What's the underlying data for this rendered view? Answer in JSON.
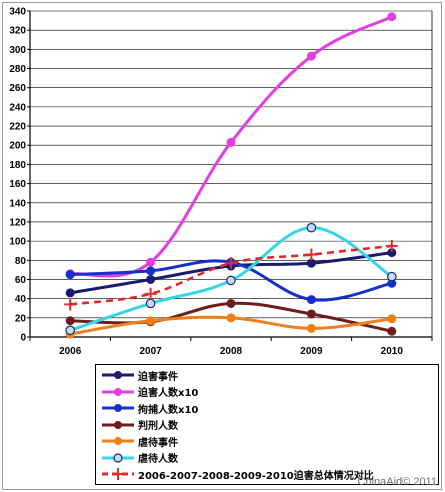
{
  "chart_data": {
    "type": "line",
    "title": "",
    "xlabel": "",
    "ylabel": "",
    "categories": [
      "2006",
      "2007",
      "2008",
      "2009",
      "2010"
    ],
    "ylim": [
      0,
      340
    ],
    "yticks": [
      0,
      20,
      40,
      60,
      80,
      100,
      120,
      140,
      160,
      180,
      200,
      220,
      240,
      260,
      280,
      300,
      320,
      340
    ],
    "grid": "horizontal",
    "legend_placement": "bottom",
    "series": [
      {
        "name": "迫害事件",
        "values": [
          46,
          60,
          74,
          77,
          88
        ],
        "color": "#1a1a6e",
        "style": "solid",
        "marker": "circle"
      },
      {
        "name": "迫害人数x10",
        "values": [
          66,
          78,
          203,
          293,
          334
        ],
        "color": "#e23ee2",
        "style": "solid",
        "marker": "circle"
      },
      {
        "name": "拘捕人数x10",
        "values": [
          65,
          69,
          78,
          39,
          56
        ],
        "color": "#1630cc",
        "style": "solid",
        "marker": "circle"
      },
      {
        "name": "判刑人数",
        "values": [
          17,
          16,
          35,
          24,
          6
        ],
        "color": "#6e1c1c",
        "style": "solid",
        "marker": "circle"
      },
      {
        "name": "虐待事件",
        "values": [
          3,
          17,
          20,
          9,
          19
        ],
        "color": "#f07f1a",
        "style": "solid",
        "marker": "circle"
      },
      {
        "name": "虐待人数",
        "values": [
          7,
          35,
          59,
          114,
          63
        ],
        "color": "#33d6e6",
        "style": "solid",
        "marker": "open-circle"
      },
      {
        "name": "2006-2007-2008-2009-2010迫害总体情况对比",
        "values": [
          34,
          45,
          77,
          86,
          95
        ],
        "color": "#e02a2a",
        "style": "dashed",
        "marker": "plus"
      }
    ]
  },
  "watermark": "ChinaAid© 2011"
}
